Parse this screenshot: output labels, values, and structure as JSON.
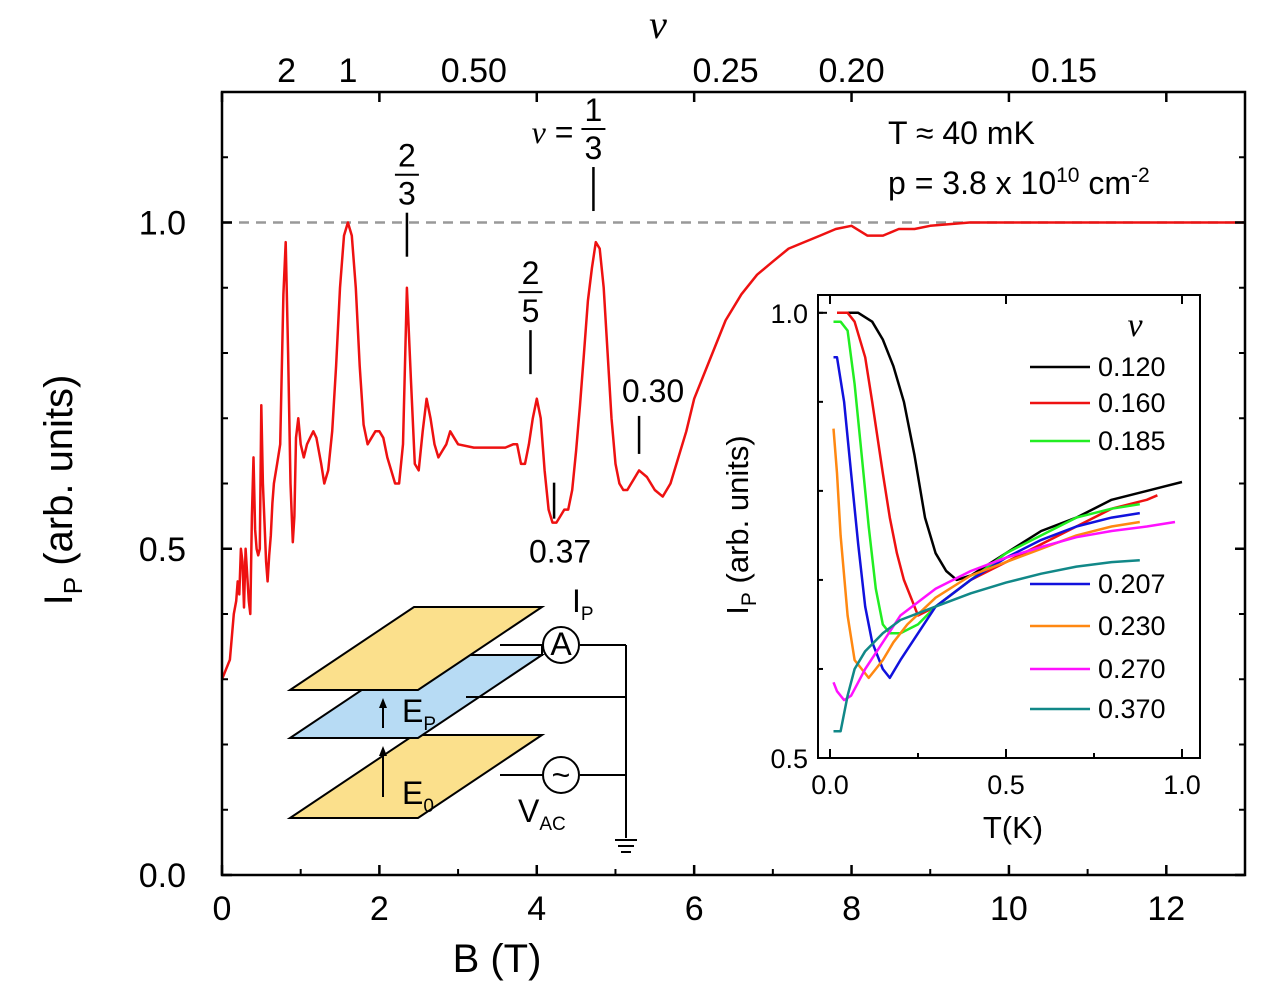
{
  "chart_data": [
    {
      "type": "line",
      "xlabel": "B (T)",
      "ylabel_main": "I",
      "ylabel_sub": "P",
      "ylabel_rest": " (arb. units)",
      "xlim": [
        0,
        13
      ],
      "ylim": [
        0.0,
        1.2
      ],
      "x_ticks": [
        0,
        2,
        4,
        6,
        8,
        10,
        12
      ],
      "x_tick_labels": [
        "0",
        "2",
        "4",
        "6",
        "8",
        "10",
        "12"
      ],
      "y_ticks": [
        0.0,
        0.5,
        1.0
      ],
      "y_tick_labels": [
        "0.0",
        "0.5",
        "1.0"
      ],
      "reference_line": {
        "y": 1.0,
        "style": "dashed",
        "color": "#999999"
      },
      "top_axis": {
        "label": "ν",
        "ticks": [
          {
            "B": 0.82,
            "label": "2"
          },
          {
            "B": 1.6,
            "label": "1"
          },
          {
            "B": 3.2,
            "label": "0.50"
          },
          {
            "B": 6.4,
            "label": "0.25"
          },
          {
            "B": 8.0,
            "label": "0.20"
          },
          {
            "B": 10.7,
            "label": "0.15"
          }
        ]
      },
      "conditions": {
        "temperature": "T ≈ 40 mK",
        "density_prefix": "p = 3.8 x 10",
        "density_exp": "10",
        "density_unit": " cm",
        "density_unit_exp": "-2"
      },
      "annotations": [
        {
          "B": 2.35,
          "y": 0.92,
          "num": "2",
          "den": "3"
        },
        {
          "B": 3.92,
          "y": 0.74,
          "num": "2",
          "den": "5"
        },
        {
          "B": 4.72,
          "y": 0.99,
          "prefix": "ν = ",
          "num": "1",
          "den": "3"
        },
        {
          "B": 5.3,
          "y": 0.63,
          "text": "0.30"
        },
        {
          "B": 4.22,
          "y": 0.54,
          "text": "0.37"
        }
      ],
      "series": [
        {
          "name": "I_P vs B",
          "color": "#ee1111",
          "x": [
            0.0,
            0.1,
            0.15,
            0.18,
            0.2,
            0.22,
            0.24,
            0.26,
            0.28,
            0.3,
            0.32,
            0.34,
            0.36,
            0.38,
            0.4,
            0.42,
            0.44,
            0.46,
            0.48,
            0.5,
            0.52,
            0.54,
            0.56,
            0.58,
            0.6,
            0.62,
            0.64,
            0.66,
            0.7,
            0.74,
            0.78,
            0.81,
            0.84,
            0.87,
            0.9,
            0.92,
            0.94,
            0.97,
            1.0,
            1.04,
            1.08,
            1.12,
            1.16,
            1.2,
            1.26,
            1.3,
            1.35,
            1.4,
            1.45,
            1.5,
            1.55,
            1.6,
            1.65,
            1.7,
            1.75,
            1.8,
            1.85,
            1.9,
            1.95,
            2.0,
            2.05,
            2.1,
            2.15,
            2.2,
            2.25,
            2.3,
            2.35,
            2.4,
            2.45,
            2.5,
            2.55,
            2.6,
            2.65,
            2.7,
            2.75,
            2.8,
            2.85,
            2.9,
            2.95,
            3.0,
            3.2,
            3.4,
            3.6,
            3.7,
            3.75,
            3.8,
            3.85,
            3.9,
            3.95,
            4.0,
            4.05,
            4.1,
            4.15,
            4.2,
            4.25,
            4.3,
            4.35,
            4.4,
            4.45,
            4.5,
            4.55,
            4.6,
            4.65,
            4.7,
            4.75,
            4.8,
            4.85,
            4.9,
            4.95,
            5.0,
            5.05,
            5.1,
            5.15,
            5.2,
            5.3,
            5.4,
            5.5,
            5.6,
            5.7,
            5.8,
            5.9,
            6.0,
            6.2,
            6.4,
            6.6,
            6.8,
            7.0,
            7.2,
            7.4,
            7.6,
            7.8,
            8.0,
            8.2,
            8.4,
            8.6,
            8.8,
            9.0,
            9.5,
            10.0,
            11.0,
            12.0,
            13.0
          ],
          "y": [
            0.3,
            0.33,
            0.4,
            0.42,
            0.45,
            0.43,
            0.5,
            0.48,
            0.41,
            0.5,
            0.46,
            0.42,
            0.4,
            0.55,
            0.64,
            0.53,
            0.5,
            0.49,
            0.5,
            0.72,
            0.6,
            0.54,
            0.48,
            0.45,
            0.49,
            0.52,
            0.57,
            0.6,
            0.63,
            0.66,
            0.89,
            0.97,
            0.8,
            0.6,
            0.51,
            0.55,
            0.67,
            0.7,
            0.66,
            0.64,
            0.66,
            0.67,
            0.68,
            0.67,
            0.63,
            0.6,
            0.62,
            0.68,
            0.78,
            0.9,
            0.98,
            1.0,
            0.98,
            0.9,
            0.78,
            0.69,
            0.66,
            0.67,
            0.68,
            0.68,
            0.67,
            0.64,
            0.62,
            0.6,
            0.6,
            0.66,
            0.9,
            0.76,
            0.63,
            0.62,
            0.68,
            0.73,
            0.7,
            0.66,
            0.64,
            0.65,
            0.66,
            0.68,
            0.67,
            0.66,
            0.655,
            0.655,
            0.655,
            0.66,
            0.66,
            0.63,
            0.63,
            0.66,
            0.7,
            0.73,
            0.7,
            0.62,
            0.56,
            0.54,
            0.54,
            0.55,
            0.56,
            0.56,
            0.59,
            0.65,
            0.72,
            0.8,
            0.88,
            0.93,
            0.97,
            0.96,
            0.9,
            0.8,
            0.7,
            0.63,
            0.6,
            0.59,
            0.59,
            0.6,
            0.62,
            0.61,
            0.59,
            0.58,
            0.6,
            0.64,
            0.68,
            0.73,
            0.79,
            0.85,
            0.89,
            0.92,
            0.94,
            0.96,
            0.97,
            0.98,
            0.99,
            0.995,
            0.98,
            0.98,
            0.99,
            0.99,
            0.995,
            1.0,
            1.0,
            1.0,
            1.0,
            1.0
          ]
        }
      ]
    },
    {
      "type": "line",
      "xlabel": "T(K)",
      "ylabel_main": "I",
      "ylabel_sub": "P",
      "ylabel_rest": " (arb. units)",
      "xlim": [
        0,
        1.0
      ],
      "ylim": [
        0.5,
        1.02
      ],
      "x_ticks": [
        0.0,
        0.5,
        1.0
      ],
      "x_tick_labels": [
        "0.0",
        "0.5",
        "1.0"
      ],
      "y_ticks": [
        0.5,
        1.0
      ],
      "y_tick_labels": [
        "0.5",
        "1.0"
      ],
      "legend_title": "ν",
      "series": [
        {
          "name": "0.120",
          "color": "#000000",
          "x": [
            0.02,
            0.08,
            0.12,
            0.15,
            0.18,
            0.21,
            0.24,
            0.27,
            0.3,
            0.33,
            0.36,
            0.4,
            0.5,
            0.6,
            0.7,
            0.8,
            0.9,
            0.95,
            1.0
          ],
          "y": [
            1.0,
            1.0,
            0.99,
            0.97,
            0.94,
            0.9,
            0.84,
            0.77,
            0.73,
            0.71,
            0.7,
            0.705,
            0.73,
            0.755,
            0.77,
            0.79,
            0.8,
            0.805,
            0.81
          ]
        },
        {
          "name": "0.160",
          "color": "#ee1111",
          "x": [
            0.02,
            0.05,
            0.07,
            0.1,
            0.12,
            0.15,
            0.17,
            0.19,
            0.21,
            0.23,
            0.25,
            0.3,
            0.4,
            0.5,
            0.6,
            0.7,
            0.8,
            0.9,
            0.93
          ],
          "y": [
            1.0,
            1.0,
            0.99,
            0.95,
            0.9,
            0.82,
            0.77,
            0.73,
            0.7,
            0.68,
            0.66,
            0.67,
            0.7,
            0.72,
            0.74,
            0.76,
            0.78,
            0.79,
            0.795
          ]
        },
        {
          "name": "0.185",
          "color": "#22ee22",
          "x": [
            0.01,
            0.03,
            0.05,
            0.07,
            0.09,
            0.11,
            0.13,
            0.15,
            0.17,
            0.2,
            0.25,
            0.3,
            0.4,
            0.5,
            0.6,
            0.7,
            0.8,
            0.88
          ],
          "y": [
            0.99,
            0.99,
            0.98,
            0.92,
            0.84,
            0.76,
            0.69,
            0.65,
            0.64,
            0.64,
            0.65,
            0.67,
            0.7,
            0.73,
            0.75,
            0.77,
            0.78,
            0.785
          ]
        },
        {
          "name": "0.207",
          "color": "#1111dd",
          "x": [
            0.01,
            0.02,
            0.04,
            0.06,
            0.08,
            0.1,
            0.12,
            0.15,
            0.17,
            0.2,
            0.25,
            0.3,
            0.4,
            0.5,
            0.6,
            0.7,
            0.8,
            0.88
          ],
          "y": [
            0.95,
            0.95,
            0.9,
            0.82,
            0.74,
            0.67,
            0.63,
            0.6,
            0.59,
            0.61,
            0.64,
            0.67,
            0.7,
            0.725,
            0.745,
            0.76,
            0.77,
            0.775
          ]
        },
        {
          "name": "0.230",
          "color": "#ff8811",
          "x": [
            0.01,
            0.02,
            0.03,
            0.05,
            0.07,
            0.09,
            0.11,
            0.13,
            0.15,
            0.18,
            0.22,
            0.3,
            0.4,
            0.5,
            0.6,
            0.7,
            0.8,
            0.88
          ],
          "y": [
            0.87,
            0.82,
            0.75,
            0.66,
            0.61,
            0.6,
            0.59,
            0.6,
            0.61,
            0.63,
            0.65,
            0.68,
            0.705,
            0.72,
            0.735,
            0.75,
            0.76,
            0.765
          ]
        },
        {
          "name": "0.270",
          "color": "#ff11ff",
          "x": [
            0.01,
            0.02,
            0.04,
            0.06,
            0.08,
            0.1,
            0.15,
            0.2,
            0.3,
            0.4,
            0.5,
            0.6,
            0.7,
            0.8,
            0.9,
            0.98
          ],
          "y": [
            0.585,
            0.575,
            0.565,
            0.57,
            0.585,
            0.6,
            0.63,
            0.66,
            0.69,
            0.71,
            0.725,
            0.737,
            0.748,
            0.755,
            0.76,
            0.765
          ]
        },
        {
          "name": "0.370",
          "color": "#118888",
          "x": [
            0.01,
            0.03,
            0.05,
            0.07,
            0.1,
            0.15,
            0.2,
            0.3,
            0.4,
            0.5,
            0.6,
            0.7,
            0.8,
            0.88
          ],
          "y": [
            0.53,
            0.53,
            0.57,
            0.6,
            0.62,
            0.64,
            0.655,
            0.67,
            0.685,
            0.697,
            0.707,
            0.715,
            0.72,
            0.722
          ]
        }
      ]
    }
  ],
  "schematic": {
    "ip_label_main": "I",
    "ip_label_sub": "P",
    "ep_label_main": "E",
    "ep_label_sub": "P",
    "e0_label_main": "E",
    "e0_label_sub": "0",
    "vac_label_main": "V",
    "vac_label_sub": "AC",
    "ammeter_symbol": "A",
    "source_symbol": "~",
    "colors": {
      "plate": "#fbe08c",
      "middle_plate": "#b7dbf4"
    }
  }
}
